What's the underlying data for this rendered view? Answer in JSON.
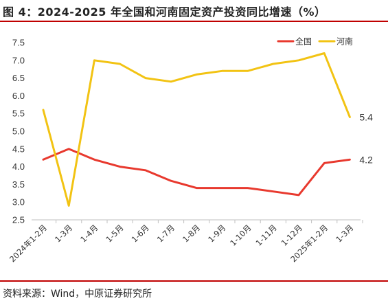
{
  "header": {
    "title": "图 4：2024-2025 年全国和河南固定资产投资同比增速（%）"
  },
  "footer": {
    "source": "资料来源：Wind，中原证券研究所"
  },
  "colors": {
    "accent_rule": "#c00000",
    "series_national": "#e8392e",
    "series_henan": "#f2c313"
  },
  "chart_data": {
    "type": "line",
    "title": "图 4：2024-2025 年全国和河南固定资产投资同比增速（%）",
    "x": [
      "2024年1-2月",
      "1-3月",
      "1-4月",
      "1-5月",
      "1-6月",
      "1-7月",
      "1-8月",
      "1-9月",
      "1-10月",
      "1-11月",
      "1-12月",
      "2025年1-2月",
      "1-3月"
    ],
    "series": [
      {
        "name": "全国",
        "values": [
          4.2,
          4.5,
          4.2,
          4.0,
          3.9,
          3.6,
          3.4,
          3.4,
          3.4,
          3.3,
          3.2,
          4.1,
          4.2
        ]
      },
      {
        "name": "河南",
        "values": [
          5.6,
          2.9,
          7.0,
          6.9,
          6.5,
          6.4,
          6.6,
          6.7,
          6.7,
          6.9,
          7.0,
          7.2,
          5.4
        ]
      }
    ],
    "end_labels": [
      "4.2",
      "5.4"
    ],
    "yticks": [
      "2.5",
      "3.0",
      "3.5",
      "4.0",
      "4.5",
      "5.0",
      "5.5",
      "6.0",
      "6.5",
      "7.0",
      "7.5"
    ],
    "ylim": [
      2.5,
      7.5
    ],
    "legend": "top-right",
    "grid": false
  }
}
